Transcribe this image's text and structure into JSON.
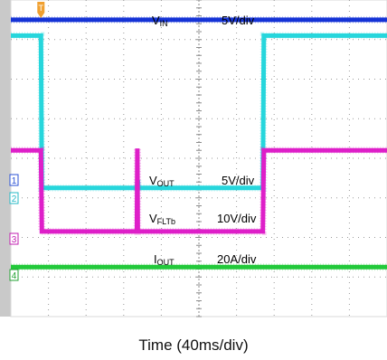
{
  "chart_data": {
    "type": "line",
    "title": "",
    "xlabel": "Time (40ms/div)",
    "x_scale_per_div": "40ms/div",
    "grid": true,
    "trigger_marker": "T",
    "series": [
      {
        "name_main": "V",
        "name_sub": "IN",
        "scale": "5V/div",
        "color": "#1533d6",
        "channel_marker": "",
        "x_ms": [
          0,
          32,
          400
        ],
        "y_div": [
          7.5,
          7.5,
          7.5
        ]
      },
      {
        "name_main": "V",
        "name_sub": "OUT",
        "scale": "5V/div",
        "color": "#26d6dc",
        "channel_marker": "2",
        "x_ms": [
          0,
          32,
          33,
          134,
          135,
          135.5,
          136,
          200,
          268,
          269,
          270,
          400
        ],
        "y_div": [
          7.1,
          7.1,
          3.25,
          3.25,
          3.45,
          3.25,
          3.25,
          3.25,
          3.25,
          7.1,
          7.1,
          7.1
        ]
      },
      {
        "name_main": "V",
        "name_sub": "FLTb",
        "scale": "10V/div",
        "color": "#de1fc9",
        "channel_marker": "3",
        "x_ms": [
          0,
          32,
          33,
          134,
          134.5,
          135,
          268,
          269,
          270,
          400
        ],
        "y_div": [
          4.2,
          4.2,
          2.15,
          2.15,
          4.25,
          2.15,
          2.15,
          4.2,
          4.2,
          4.2
        ],
        "note_alt": ""
      },
      {
        "name_main": "I",
        "name_sub": "OUT",
        "scale": "20A/div",
        "color": "#22c93a",
        "channel_marker": "4",
        "x_ms": [
          0,
          32,
          33,
          400
        ],
        "y_div": [
          1.25,
          1.25,
          1.25,
          1.25
        ]
      }
    ],
    "marker_1": "1"
  }
}
